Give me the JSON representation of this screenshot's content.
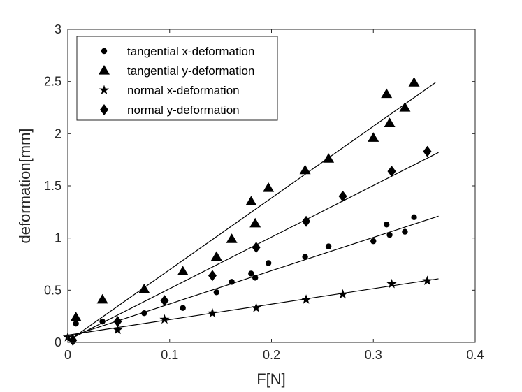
{
  "chart_data": {
    "type": "scatter",
    "title": "",
    "xlabel": "F[N]",
    "ylabel": "deformation[mm]",
    "xlim": [
      0,
      0.4
    ],
    "ylim": [
      0,
      3
    ],
    "xticks": [
      0,
      0.1,
      0.2,
      0.3,
      0.4
    ],
    "yticks": [
      0,
      0.5,
      1,
      1.5,
      2,
      2.5,
      3
    ],
    "xtick_labels": [
      "0",
      "0.1",
      "0.2",
      "0.3",
      "0.4"
    ],
    "ytick_labels": [
      "0",
      "0.5",
      "1",
      "1.5",
      "2",
      "2.5",
      "3"
    ],
    "grid": false,
    "legend_position": "top-left",
    "series": [
      {
        "name": "tangential x-deformation",
        "marker": "circle",
        "x": [
          0.008,
          0.034,
          0.075,
          0.113,
          0.146,
          0.161,
          0.18,
          0.184,
          0.197,
          0.233,
          0.256,
          0.3,
          0.313,
          0.316,
          0.331,
          0.34
        ],
        "y": [
          0.18,
          0.2,
          0.28,
          0.33,
          0.48,
          0.58,
          0.66,
          0.62,
          0.76,
          0.82,
          0.92,
          0.97,
          1.13,
          1.03,
          1.06,
          1.2
        ],
        "fit": {
          "x": [
            0.0,
            0.364
          ],
          "y": [
            0.05,
            1.21
          ]
        }
      },
      {
        "name": "tangential y-deformation",
        "marker": "triangle",
        "x": [
          0.008,
          0.034,
          0.075,
          0.113,
          0.146,
          0.161,
          0.18,
          0.184,
          0.197,
          0.233,
          0.256,
          0.3,
          0.313,
          0.316,
          0.331,
          0.34
        ],
        "y": [
          0.24,
          0.41,
          0.51,
          0.68,
          0.82,
          0.99,
          1.35,
          1.14,
          1.48,
          1.65,
          1.76,
          1.96,
          2.38,
          2.1,
          2.25,
          2.49
        ],
        "fit": {
          "x": [
            0.0,
            0.361
          ],
          "y": [
            0.01,
            2.49
          ]
        }
      },
      {
        "name": "normal x-deformation",
        "marker": "star",
        "x": [
          0.0,
          0.049,
          0.095,
          0.142,
          0.185,
          0.234,
          0.27,
          0.318,
          0.353
        ],
        "y": [
          0.05,
          0.12,
          0.22,
          0.28,
          0.33,
          0.41,
          0.46,
          0.56,
          0.59
        ],
        "fit": {
          "x": [
            0.0,
            0.364
          ],
          "y": [
            0.07,
            0.61
          ]
        }
      },
      {
        "name": "normal y-deformation",
        "marker": "diamond",
        "x": [
          0.005,
          0.049,
          0.095,
          0.142,
          0.185,
          0.234,
          0.27,
          0.318,
          0.353
        ],
        "y": [
          0.02,
          0.2,
          0.4,
          0.64,
          0.91,
          1.16,
          1.4,
          1.64,
          1.83
        ],
        "fit": {
          "x": [
            0.0,
            0.364
          ],
          "y": [
            0.02,
            1.82
          ]
        }
      }
    ]
  }
}
